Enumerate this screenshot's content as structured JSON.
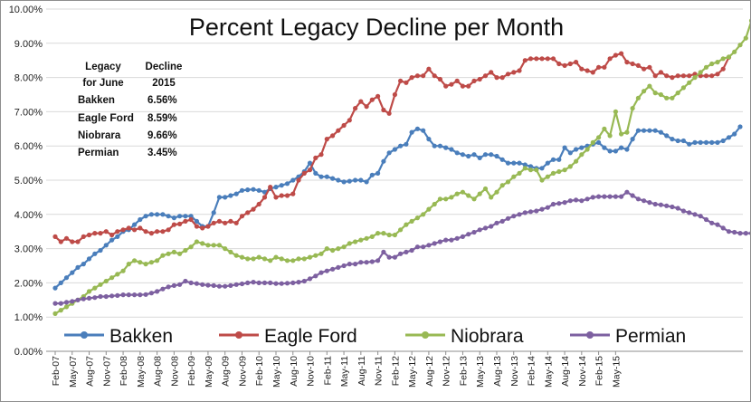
{
  "chart_data": {
    "type": "line",
    "title": "Percent Legacy Decline per Month",
    "xlabel": "",
    "ylabel": "",
    "ylim": [
      0,
      10
    ],
    "y_ticks": [
      "0.00%",
      "1.00%",
      "2.00%",
      "3.00%",
      "4.00%",
      "5.00%",
      "6.00%",
      "7.00%",
      "8.00%",
      "9.00%",
      "10.00%"
    ],
    "x_tick_labels": [
      "Feb-07",
      "May-07",
      "Aug-07",
      "Nov-07",
      "Feb-08",
      "May-08",
      "Aug-08",
      "Nov-08",
      "Feb-09",
      "May-09",
      "Aug-09",
      "Nov-09",
      "Feb-10",
      "May-10",
      "Aug-10",
      "Nov-10",
      "Feb-11",
      "May-11",
      "Aug-11",
      "Nov-11",
      "Feb-12",
      "May-12",
      "Aug-12",
      "Nov-12",
      "Feb-13",
      "May-13",
      "Aug-13",
      "Nov-13",
      "Feb-14",
      "May-14",
      "Aug-14",
      "Nov-14",
      "Feb-15",
      "May-15"
    ],
    "x_start": "Feb-07",
    "x_end": "Jun-15",
    "grid": "horizontal",
    "legend_position": "bottom",
    "colors": {
      "Bakken": "#4a7ebb",
      "Eagle Ford": "#be4b48",
      "Niobrara": "#98b954",
      "Permian": "#7d60a0"
    },
    "annotation": {
      "header": [
        "Legacy",
        "Decline",
        "for June",
        "2015"
      ],
      "rows": [
        {
          "label": "Bakken",
          "value": "6.56%"
        },
        {
          "label": "Eagle Ford",
          "value": "8.59%"
        },
        {
          "label": "Niobrara",
          "value": "9.66%"
        },
        {
          "label": "Permian",
          "value": "3.45%"
        }
      ]
    },
    "series": [
      {
        "name": "Bakken",
        "values": [
          1.85,
          2.0,
          2.15,
          2.3,
          2.45,
          2.55,
          2.7,
          2.85,
          2.95,
          3.1,
          3.25,
          3.35,
          3.5,
          3.55,
          3.7,
          3.85,
          3.95,
          4.0,
          4.0,
          4.0,
          3.95,
          3.9,
          3.95,
          3.95,
          3.95,
          3.8,
          3.65,
          3.65,
          4.05,
          4.5,
          4.5,
          4.55,
          4.6,
          4.7,
          4.72,
          4.73,
          4.7,
          4.65,
          4.75,
          4.8,
          4.85,
          4.9,
          5.0,
          5.1,
          5.25,
          5.5,
          5.2,
          5.1,
          5.1,
          5.05,
          5.0,
          4.95,
          4.97,
          5.0,
          5.0,
          4.95,
          5.15,
          5.2,
          5.55,
          5.8,
          5.9,
          6.0,
          6.05,
          6.4,
          6.5,
          6.45,
          6.2,
          6.0,
          6.0,
          5.95,
          5.9,
          5.8,
          5.75,
          5.7,
          5.75,
          5.65,
          5.75,
          5.75,
          5.7,
          5.6,
          5.5,
          5.5,
          5.5,
          5.45,
          5.4,
          5.35,
          5.35,
          5.5,
          5.6,
          5.6,
          5.95,
          5.8,
          5.9,
          5.95,
          6.0,
          6.05,
          6.1,
          5.95,
          5.85,
          5.85,
          5.95,
          5.9,
          6.2,
          6.45,
          6.45,
          6.45,
          6.45,
          6.4,
          6.3,
          6.2,
          6.15,
          6.15,
          6.05,
          6.1,
          6.1,
          6.1,
          6.1,
          6.1,
          6.15,
          6.25,
          6.35,
          6.56
        ]
      },
      {
        "name": "Eagle Ford",
        "values": [
          3.35,
          3.2,
          3.3,
          3.2,
          3.2,
          3.35,
          3.4,
          3.45,
          3.45,
          3.5,
          3.4,
          3.5,
          3.55,
          3.6,
          3.55,
          3.6,
          3.5,
          3.45,
          3.5,
          3.5,
          3.55,
          3.7,
          3.72,
          3.8,
          3.85,
          3.65,
          3.6,
          3.65,
          3.75,
          3.8,
          3.75,
          3.8,
          3.75,
          3.95,
          4.05,
          4.15,
          4.3,
          4.5,
          4.8,
          4.5,
          4.55,
          4.55,
          4.6,
          5.0,
          5.2,
          5.3,
          5.65,
          5.75,
          6.2,
          6.3,
          6.45,
          6.6,
          6.75,
          7.1,
          7.3,
          7.15,
          7.35,
          7.45,
          7.05,
          6.95,
          7.5,
          7.9,
          7.85,
          8.0,
          8.05,
          8.05,
          8.25,
          8.05,
          7.95,
          7.75,
          7.8,
          7.9,
          7.75,
          7.75,
          7.9,
          7.95,
          8.05,
          8.15,
          8.0,
          8.0,
          8.1,
          8.15,
          8.2,
          8.5,
          8.55,
          8.55,
          8.55,
          8.55,
          8.55,
          8.4,
          8.35,
          8.4,
          8.45,
          8.25,
          8.2,
          8.15,
          8.3,
          8.3,
          8.55,
          8.65,
          8.7,
          8.45,
          8.4,
          8.35,
          8.25,
          8.3,
          8.05,
          8.15,
          8.05,
          8.0,
          8.05,
          8.05,
          8.05,
          8.1,
          8.05,
          8.05,
          8.05,
          8.1,
          8.25,
          8.59
        ]
      },
      {
        "name": "Niobrara",
        "values": [
          1.1,
          1.2,
          1.3,
          1.4,
          1.5,
          1.6,
          1.75,
          1.85,
          1.95,
          2.05,
          2.15,
          2.25,
          2.35,
          2.55,
          2.65,
          2.6,
          2.55,
          2.6,
          2.65,
          2.8,
          2.85,
          2.9,
          2.85,
          2.95,
          3.05,
          3.2,
          3.15,
          3.1,
          3.1,
          3.1,
          3.0,
          2.9,
          2.8,
          2.75,
          2.7,
          2.7,
          2.75,
          2.7,
          2.65,
          2.75,
          2.7,
          2.65,
          2.65,
          2.7,
          2.7,
          2.75,
          2.8,
          2.85,
          3.0,
          2.95,
          3.0,
          3.05,
          3.15,
          3.2,
          3.25,
          3.3,
          3.35,
          3.45,
          3.45,
          3.4,
          3.4,
          3.55,
          3.7,
          3.8,
          3.9,
          4.0,
          4.15,
          4.3,
          4.45,
          4.45,
          4.5,
          4.6,
          4.65,
          4.55,
          4.45,
          4.6,
          4.75,
          4.5,
          4.65,
          4.85,
          4.95,
          5.1,
          5.2,
          5.35,
          5.3,
          5.3,
          5.0,
          5.1,
          5.2,
          5.25,
          5.3,
          5.4,
          5.55,
          5.75,
          5.9,
          6.1,
          6.25,
          6.5,
          6.3,
          7.0,
          6.35,
          6.4,
          7.1,
          7.4,
          7.6,
          7.75,
          7.55,
          7.5,
          7.4,
          7.4,
          7.55,
          7.7,
          7.85,
          8.0,
          8.15,
          8.3,
          8.4,
          8.45,
          8.55,
          8.6,
          8.75,
          8.95,
          9.15,
          9.66
        ]
      },
      {
        "name": "Permian",
        "values": [
          1.4,
          1.4,
          1.43,
          1.46,
          1.5,
          1.53,
          1.55,
          1.57,
          1.6,
          1.6,
          1.62,
          1.63,
          1.65,
          1.65,
          1.65,
          1.65,
          1.66,
          1.7,
          1.75,
          1.82,
          1.88,
          1.92,
          1.95,
          2.05,
          2.0,
          1.98,
          1.95,
          1.93,
          1.92,
          1.9,
          1.9,
          1.92,
          1.95,
          1.97,
          2.0,
          2.02,
          2.0,
          2.0,
          2.0,
          1.98,
          1.98,
          1.99,
          2.0,
          2.02,
          2.05,
          2.12,
          2.2,
          2.3,
          2.35,
          2.4,
          2.45,
          2.5,
          2.55,
          2.55,
          2.6,
          2.6,
          2.62,
          2.65,
          2.9,
          2.75,
          2.75,
          2.85,
          2.9,
          2.95,
          3.05,
          3.05,
          3.1,
          3.15,
          3.2,
          3.25,
          3.25,
          3.3,
          3.35,
          3.42,
          3.48,
          3.55,
          3.6,
          3.65,
          3.75,
          3.8,
          3.88,
          3.95,
          4.0,
          4.05,
          4.08,
          4.1,
          4.15,
          4.2,
          4.3,
          4.32,
          4.35,
          4.4,
          4.42,
          4.4,
          4.45,
          4.5,
          4.52,
          4.52,
          4.52,
          4.52,
          4.52,
          4.65,
          4.55,
          4.45,
          4.4,
          4.35,
          4.3,
          4.28,
          4.25,
          4.22,
          4.18,
          4.1,
          4.05,
          4.0,
          3.95,
          3.85,
          3.75,
          3.7,
          3.6,
          3.5,
          3.48,
          3.45,
          3.45,
          3.45
        ]
      }
    ]
  }
}
